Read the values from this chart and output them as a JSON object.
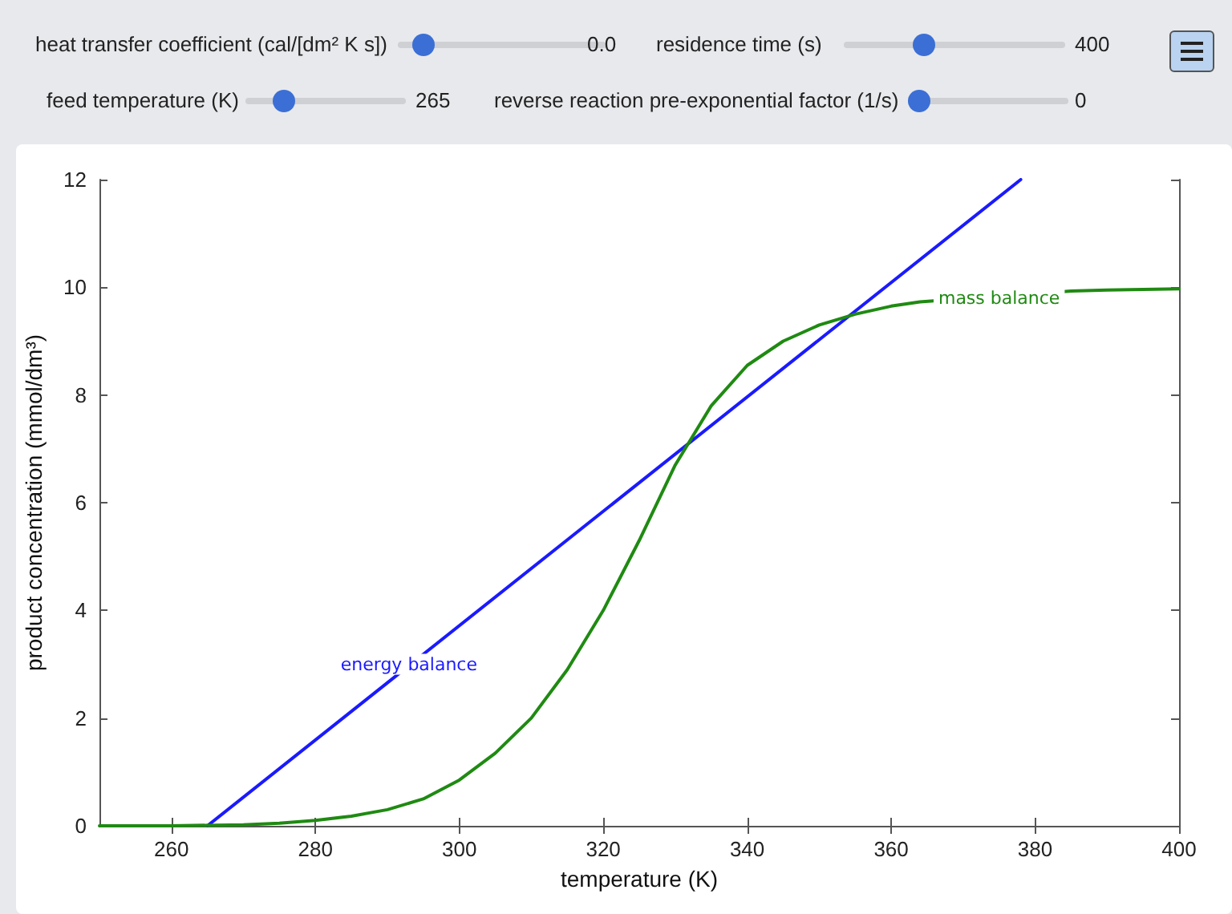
{
  "chart_data": {
    "type": "line",
    "xlabel": "temperature (K)",
    "ylabel": "product concentration (mmol/dm³)",
    "xlim": [
      250,
      400
    ],
    "xticks": [
      260,
      280,
      300,
      320,
      340,
      360,
      380,
      400
    ],
    "ylim": [
      0,
      12
    ],
    "yticks": [
      0,
      2,
      4,
      6,
      8,
      10,
      12
    ],
    "grid": false,
    "marker": "none",
    "line_style": "solid",
    "series": [
      {
        "color": "#1a1aff",
        "x": [
          265,
          378
        ],
        "values": [
          0,
          12
        ]
      },
      {
        "color": "#1f8a12",
        "x": [
          250,
          260,
          270,
          275,
          280,
          285,
          290,
          295,
          300,
          305,
          310,
          315,
          320,
          325,
          330,
          335,
          340,
          345,
          350,
          355,
          360,
          364,
          385,
          390,
          400
        ],
        "values": [
          0,
          0,
          0.02,
          0.05,
          0.1,
          0.18,
          0.3,
          0.5,
          0.85,
          1.35,
          2.0,
          2.9,
          4.0,
          5.3,
          6.7,
          7.8,
          8.55,
          9.0,
          9.3,
          9.5,
          9.65,
          9.73,
          9.93,
          9.95,
          9.97
        ]
      }
    ],
    "annotations": [
      "heat transfer coefficient (cal/[dm² K s])",
      "0.0",
      "residence time (s)",
      "400",
      "feed temperature (K)",
      "265",
      "reverse reaction pre-exponential factor (1/s)",
      "0",
      {
        "text": "energy balance",
        "x": 293,
        "y": 3
      },
      {
        "text": "mass balance",
        "x": 375,
        "y": 9.8
      }
    ]
  }
}
